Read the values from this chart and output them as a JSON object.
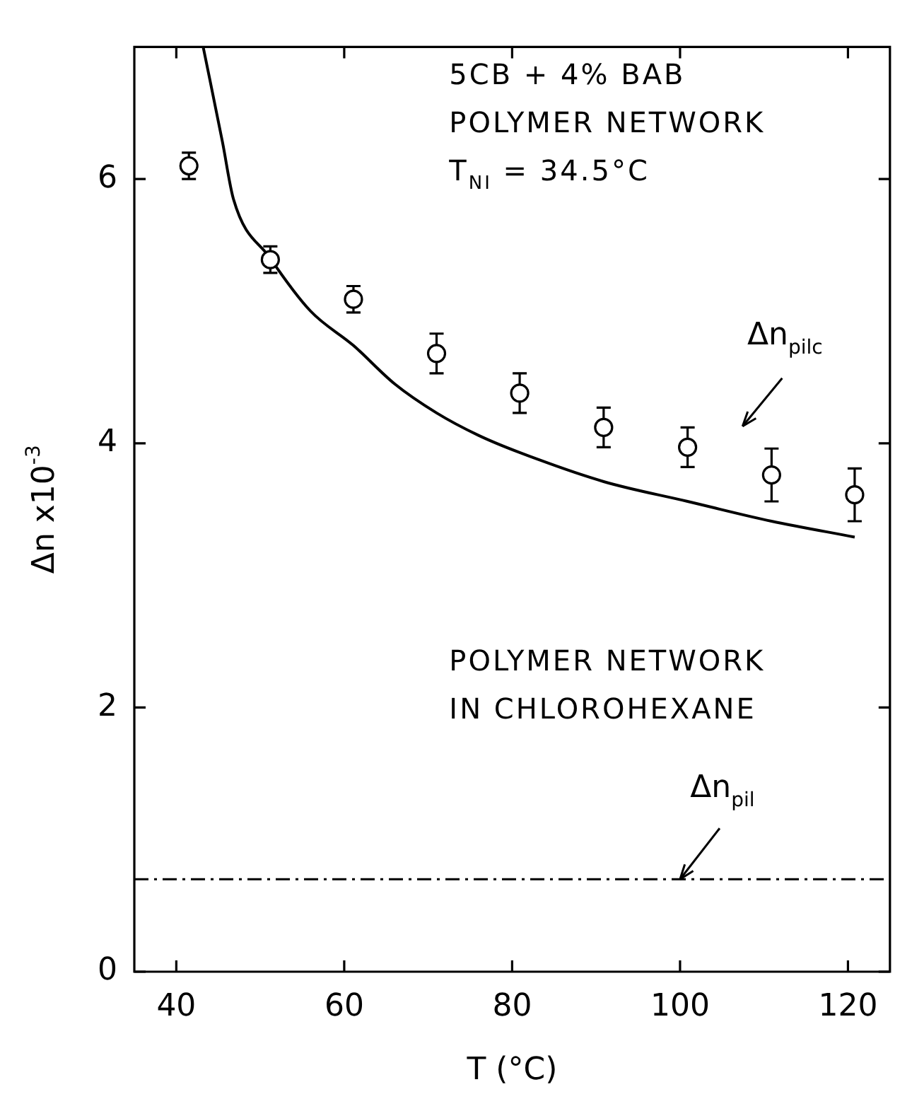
{
  "chart_data": {
    "type": "scatter",
    "xlabel": "T (°C)",
    "ylabel": "Δn x10$^{-3}$",
    "xlim": [
      35,
      125
    ],
    "xticks": [
      40,
      60,
      80,
      100,
      120
    ],
    "ylim": [
      0,
      7
    ],
    "yticks": [
      0,
      2,
      4,
      6
    ],
    "grid": false,
    "legend": false,
    "series": [
      {
        "type": "scatter",
        "color": "#000000",
        "marker": "circle",
        "x": [
          41.5,
          51.2,
          61.1,
          71.0,
          80.9,
          90.9,
          100.9,
          110.9,
          120.8
        ],
        "values": [
          6.1,
          5.39,
          5.09,
          4.68,
          4.38,
          4.12,
          3.97,
          3.76,
          3.61
        ],
        "errors": [
          0.1,
          0.1,
          0.1,
          0.15,
          0.15,
          0.15,
          0.15,
          0.2,
          0.2
        ]
      },
      {
        "type": "line",
        "color": "#000000",
        "marker": "none",
        "line_style": "solid",
        "x": [
          43.2,
          45.5,
          46.8,
          51.2,
          56,
          61.1,
          66,
          71.0,
          76,
          80.9,
          90.9,
          100.9,
          110.9,
          120.8
        ],
        "values": [
          7.0,
          6.28,
          5.85,
          5.4,
          5.0,
          4.74,
          4.45,
          4.23,
          4.06,
          3.93,
          3.71,
          3.56,
          3.41,
          3.29
        ]
      }
    ],
    "ref_lines": [
      {
        "axis": "y",
        "value": 0.7,
        "color": "#000000",
        "line_style": "dashed"
      }
    ],
    "annotations": [
      "5CB + 4% BAB\nPOLYMER NETWORK\nT$_{NI}$ = 34.5°C",
      "POLYMER NETWORK\nIN CHLOROHEXANE",
      "Δn$_{pilc}$",
      {
        "text": "Δn$_{pil}$",
        "x": 100,
        "y": 0.7
      }
    ]
  }
}
